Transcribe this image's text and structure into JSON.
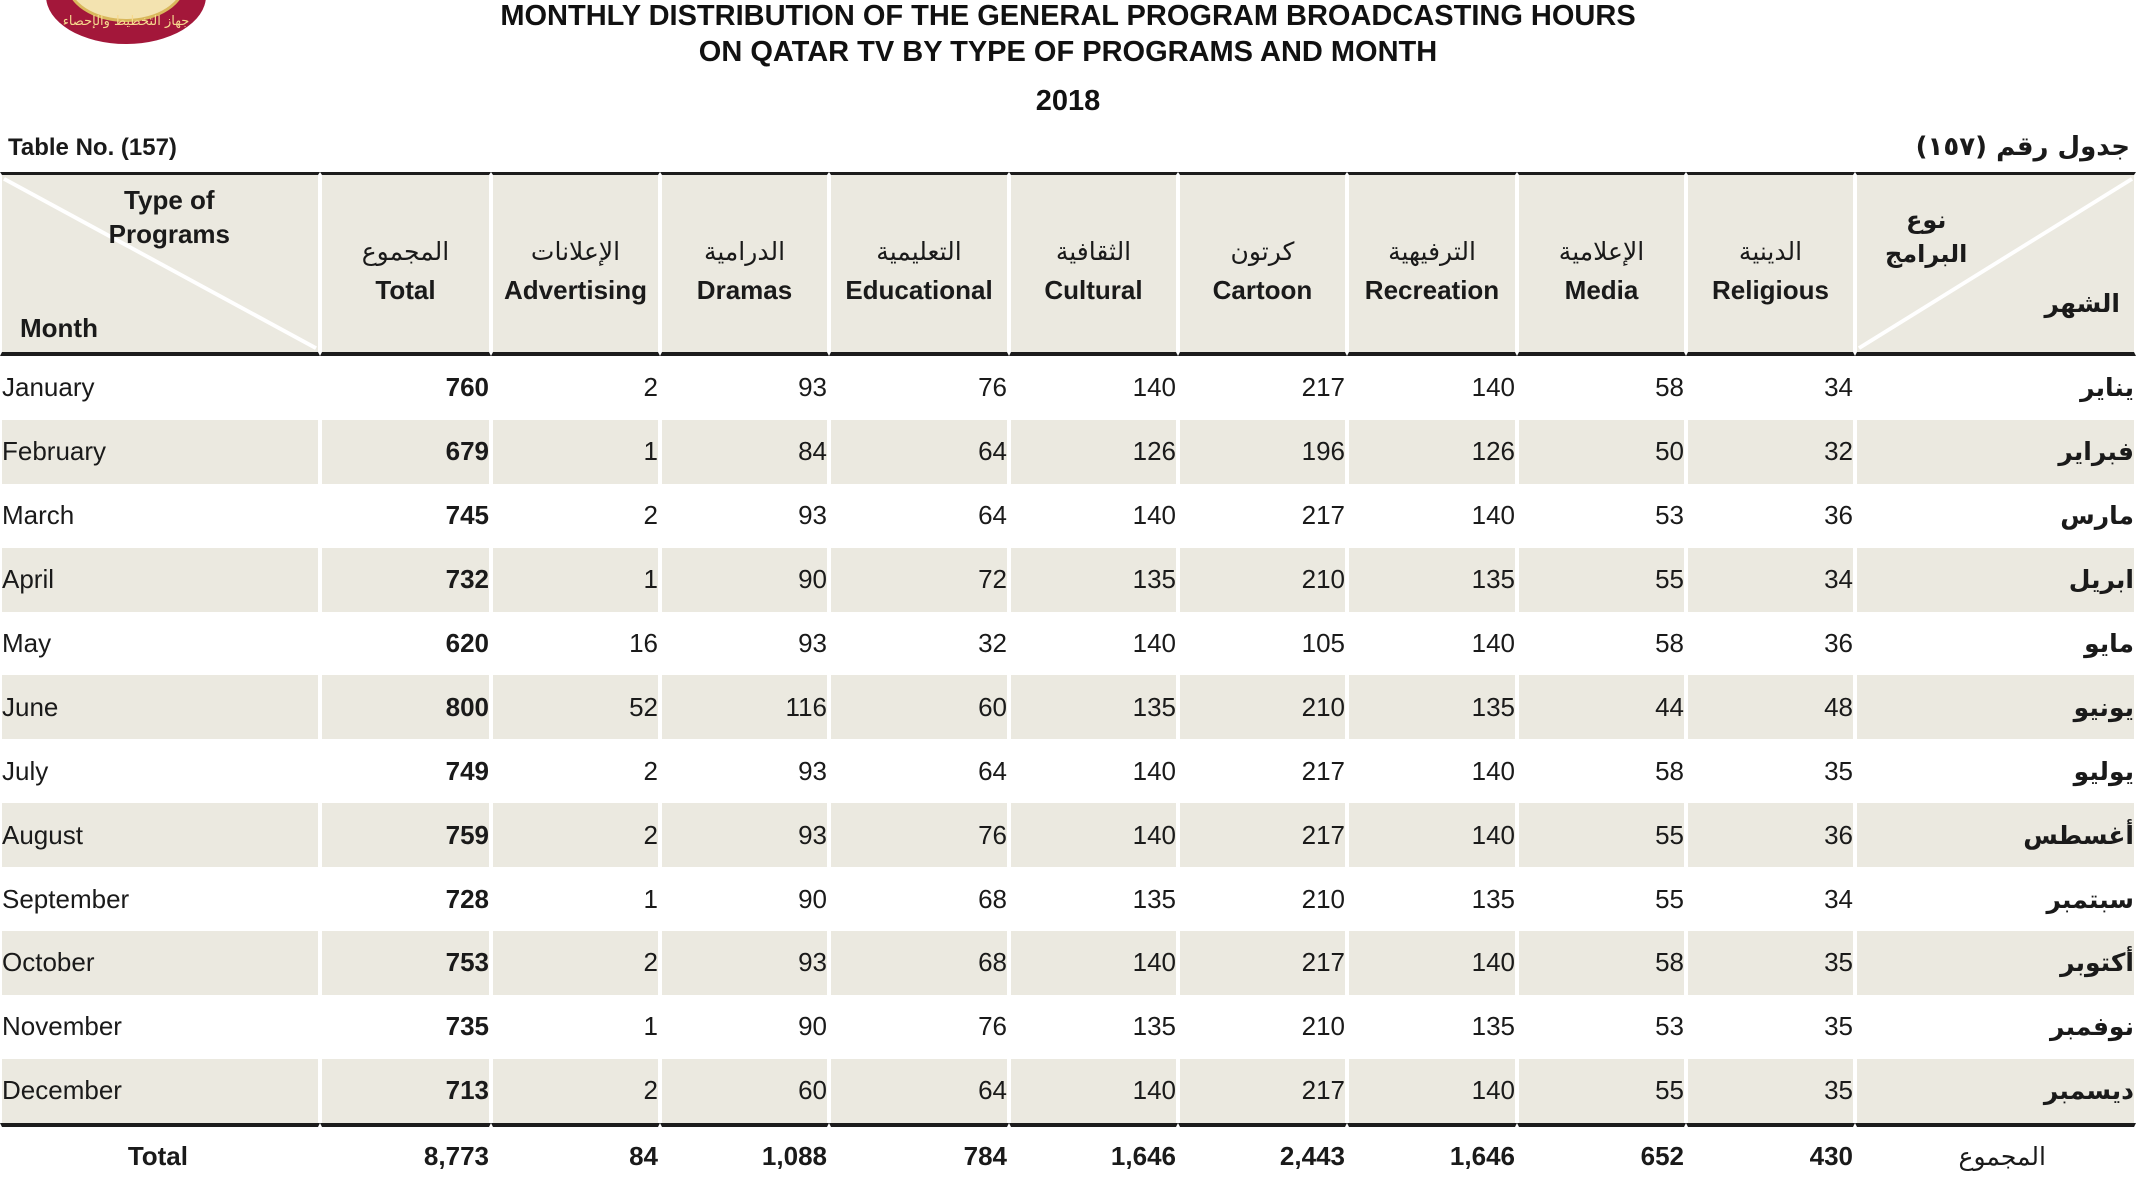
{
  "header": {
    "title_line1": "MONTHLY DISTRIBUTION OF THE GENERAL PROGRAM BROADCASTING HOURS",
    "title_line2": "ON QATAR TV BY TYPE OF PROGRAMS AND MONTH",
    "year": "2018",
    "table_no_en": "Table No. (157)",
    "table_no_ar": "جدول رقم (١٥٧)",
    "logo_text": "جهاز التخطيط والإحصاء"
  },
  "corner": {
    "type_en_1": "Type of",
    "type_en_2": "Programs",
    "month_en": "Month",
    "type_ar_1": "نوع",
    "type_ar_2": "البرامج",
    "month_ar": "الشهر"
  },
  "columns": [
    {
      "ar": "المجموع",
      "en": "Total"
    },
    {
      "ar": "الإعلانات",
      "en": "Advertising"
    },
    {
      "ar": "الدرامية",
      "en": "Dramas"
    },
    {
      "ar": "التعليمية",
      "en": "Educational"
    },
    {
      "ar": "الثقافية",
      "en": "Cultural"
    },
    {
      "ar": "كرتون",
      "en": "Cartoon"
    },
    {
      "ar": "الترفيهية",
      "en": "Recreation"
    },
    {
      "ar": "الإعلامية",
      "en": "Media"
    },
    {
      "ar": "الدينية",
      "en": "Religious"
    }
  ],
  "rows": [
    {
      "en": "January",
      "ar": "يناير",
      "v": [
        "760",
        "2",
        "93",
        "76",
        "140",
        "217",
        "140",
        "58",
        "34"
      ]
    },
    {
      "en": "February",
      "ar": "فبراير",
      "v": [
        "679",
        "1",
        "84",
        "64",
        "126",
        "196",
        "126",
        "50",
        "32"
      ]
    },
    {
      "en": "March",
      "ar": "مارس",
      "v": [
        "745",
        "2",
        "93",
        "64",
        "140",
        "217",
        "140",
        "53",
        "36"
      ]
    },
    {
      "en": "April",
      "ar": "ابريل",
      "v": [
        "732",
        "1",
        "90",
        "72",
        "135",
        "210",
        "135",
        "55",
        "34"
      ]
    },
    {
      "en": "May",
      "ar": "مايو",
      "v": [
        "620",
        "16",
        "93",
        "32",
        "140",
        "105",
        "140",
        "58",
        "36"
      ]
    },
    {
      "en": "June",
      "ar": "يونيو",
      "v": [
        "800",
        "52",
        "116",
        "60",
        "135",
        "210",
        "135",
        "44",
        "48"
      ]
    },
    {
      "en": "July",
      "ar": "يوليو",
      "v": [
        "749",
        "2",
        "93",
        "64",
        "140",
        "217",
        "140",
        "58",
        "35"
      ]
    },
    {
      "en": "August",
      "ar": "أغسطس",
      "v": [
        "759",
        "2",
        "93",
        "76",
        "140",
        "217",
        "140",
        "55",
        "36"
      ]
    },
    {
      "en": "September",
      "ar": "سبتمبر",
      "v": [
        "728",
        "1",
        "90",
        "68",
        "135",
        "210",
        "135",
        "55",
        "34"
      ]
    },
    {
      "en": "October",
      "ar": "أكتوبر",
      "v": [
        "753",
        "2",
        "93",
        "68",
        "140",
        "217",
        "140",
        "58",
        "35"
      ]
    },
    {
      "en": "November",
      "ar": "نوفمبر",
      "v": [
        "735",
        "1",
        "90",
        "76",
        "135",
        "210",
        "135",
        "53",
        "35"
      ]
    },
    {
      "en": "December",
      "ar": "ديسمبر",
      "v": [
        "713",
        "2",
        "60",
        "64",
        "140",
        "217",
        "140",
        "55",
        "35"
      ]
    }
  ],
  "totals": {
    "en": "Total",
    "ar": "المجموع",
    "v": [
      "8,773",
      "84",
      "1,088",
      "784",
      "1,646",
      "2,443",
      "1,646",
      "652",
      "430"
    ]
  }
}
